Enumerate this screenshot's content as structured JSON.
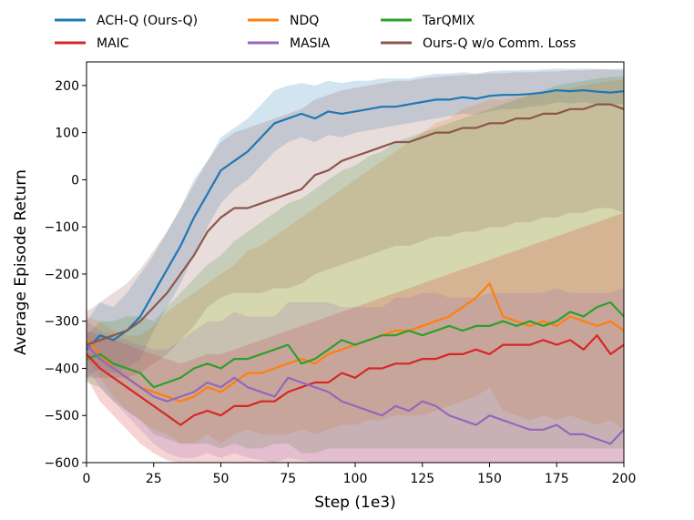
{
  "chart_data": {
    "type": "line",
    "xlabel": "Step (1e3)",
    "ylabel": "Average Episode Return",
    "xlim": [
      0,
      200
    ],
    "ylim": [
      -600,
      250
    ],
    "xticks": [
      0,
      25,
      50,
      75,
      100,
      125,
      150,
      175,
      200
    ],
    "yticks": [
      -600,
      -500,
      -400,
      -300,
      -200,
      -100,
      0,
      100,
      200
    ],
    "legend_position": "top",
    "grid": false,
    "shaded_bands": true,
    "series": [
      {
        "name": "ACH-Q (Ours-Q)",
        "color": "#1f77b4",
        "x": [
          0,
          5,
          10,
          15,
          20,
          25,
          30,
          35,
          40,
          45,
          50,
          55,
          60,
          65,
          70,
          75,
          80,
          85,
          90,
          95,
          100,
          105,
          110,
          115,
          120,
          125,
          130,
          135,
          140,
          145,
          150,
          155,
          160,
          165,
          170,
          175,
          180,
          185,
          190,
          195,
          200
        ],
        "y": [
          -360,
          -330,
          -340,
          -320,
          -290,
          -240,
          -190,
          -140,
          -80,
          -30,
          20,
          40,
          60,
          90,
          120,
          130,
          140,
          130,
          145,
          140,
          145,
          150,
          155,
          155,
          160,
          165,
          170,
          170,
          175,
          172,
          178,
          180,
          180,
          182,
          185,
          190,
          188,
          190,
          187,
          185,
          188
        ],
        "lower": [
          -420,
          -400,
          -410,
          -400,
          -380,
          -320,
          -270,
          -220,
          -160,
          -100,
          -50,
          -20,
          0,
          30,
          60,
          80,
          90,
          80,
          95,
          90,
          100,
          105,
          110,
          115,
          120,
          125,
          130,
          135,
          140,
          138,
          145,
          150,
          150,
          155,
          158,
          165,
          162,
          165,
          160,
          158,
          162
        ],
        "upper": [
          -300,
          -260,
          -270,
          -240,
          -200,
          -160,
          -110,
          -60,
          0,
          40,
          90,
          110,
          130,
          160,
          190,
          200,
          205,
          200,
          210,
          205,
          210,
          210,
          215,
          215,
          215,
          220,
          225,
          225,
          228,
          225,
          230,
          232,
          232,
          233,
          234,
          236,
          235,
          236,
          235,
          234,
          236
        ]
      },
      {
        "name": "NDQ",
        "color": "#ff7f0e",
        "x": [
          0,
          5,
          10,
          15,
          20,
          25,
          30,
          35,
          40,
          45,
          50,
          55,
          60,
          65,
          70,
          75,
          80,
          85,
          90,
          95,
          100,
          105,
          110,
          115,
          120,
          125,
          130,
          135,
          140,
          145,
          150,
          155,
          160,
          165,
          170,
          175,
          180,
          185,
          190,
          195,
          200
        ],
        "y": [
          -340,
          -370,
          -400,
          -420,
          -440,
          -450,
          -460,
          -470,
          -460,
          -440,
          -450,
          -430,
          -410,
          -410,
          -400,
          -390,
          -380,
          -390,
          -370,
          -360,
          -350,
          -340,
          -330,
          -320,
          -320,
          -310,
          -300,
          -290,
          -270,
          -250,
          -220,
          -290,
          -300,
          -310,
          -300,
          -310,
          -290,
          -300,
          -310,
          -300,
          -320
        ],
        "lower": [
          -380,
          -420,
          -460,
          -490,
          -510,
          -530,
          -540,
          -560,
          -560,
          -540,
          -560,
          -540,
          -530,
          -540,
          -540,
          -540,
          -530,
          -540,
          -530,
          -520,
          -520,
          -510,
          -510,
          -500,
          -500,
          -500,
          -490,
          -480,
          -470,
          -460,
          -440,
          -490,
          -500,
          -510,
          -500,
          -510,
          -500,
          -510,
          -520,
          -510,
          -530
        ],
        "upper": [
          -290,
          -300,
          -320,
          -330,
          -330,
          -310,
          -280,
          -260,
          -240,
          -220,
          -200,
          -180,
          -150,
          -140,
          -120,
          -100,
          -80,
          -60,
          -40,
          -20,
          0,
          20,
          40,
          60,
          80,
          100,
          120,
          130,
          150,
          160,
          170,
          170,
          175,
          180,
          185,
          190,
          195,
          200,
          205,
          210,
          212
        ]
      },
      {
        "name": "TarQMIX",
        "color": "#2ca02c",
        "x": [
          0,
          5,
          10,
          15,
          20,
          25,
          30,
          35,
          40,
          45,
          50,
          55,
          60,
          65,
          70,
          75,
          80,
          85,
          90,
          95,
          100,
          105,
          110,
          115,
          120,
          125,
          130,
          135,
          140,
          145,
          150,
          155,
          160,
          165,
          170,
          175,
          180,
          185,
          190,
          195,
          200
        ],
        "y": [
          -380,
          -370,
          -390,
          -400,
          -410,
          -440,
          -430,
          -420,
          -400,
          -390,
          -400,
          -380,
          -380,
          -370,
          -360,
          -350,
          -390,
          -380,
          -360,
          -340,
          -350,
          -340,
          -330,
          -330,
          -320,
          -330,
          -320,
          -310,
          -320,
          -310,
          -310,
          -300,
          -310,
          -300,
          -310,
          -300,
          -280,
          -290,
          -270,
          -260,
          -290
        ],
        "lower": [
          -430,
          -440,
          -470,
          -490,
          -510,
          -540,
          -550,
          -560,
          -560,
          -560,
          -570,
          -560,
          -570,
          -570,
          -560,
          -560,
          -580,
          -580,
          -570,
          -570,
          -570,
          -570,
          -570,
          -570,
          -570,
          -570,
          -570,
          -570,
          -570,
          -570,
          -570,
          -570,
          -570,
          -570,
          -570,
          -570,
          -570,
          -570,
          -570,
          -570,
          -570
        ],
        "upper": [
          -330,
          -300,
          -300,
          -290,
          -290,
          -300,
          -270,
          -240,
          -210,
          -180,
          -160,
          -130,
          -110,
          -90,
          -70,
          -50,
          -40,
          -20,
          0,
          20,
          30,
          50,
          60,
          80,
          90,
          100,
          110,
          120,
          130,
          140,
          150,
          160,
          170,
          180,
          190,
          200,
          205,
          210,
          215,
          218,
          220
        ]
      },
      {
        "name": "MAIC",
        "color": "#d62728",
        "x": [
          0,
          5,
          10,
          15,
          20,
          25,
          30,
          35,
          40,
          45,
          50,
          55,
          60,
          65,
          70,
          75,
          80,
          85,
          90,
          95,
          100,
          105,
          110,
          115,
          120,
          125,
          130,
          135,
          140,
          145,
          150,
          155,
          160,
          165,
          170,
          175,
          180,
          185,
          190,
          195,
          200
        ],
        "y": [
          -370,
          -400,
          -420,
          -440,
          -460,
          -480,
          -500,
          -520,
          -500,
          -490,
          -500,
          -480,
          -480,
          -470,
          -470,
          -450,
          -440,
          -430,
          -430,
          -410,
          -420,
          -400,
          -400,
          -390,
          -390,
          -380,
          -380,
          -370,
          -370,
          -360,
          -370,
          -350,
          -350,
          -350,
          -340,
          -350,
          -340,
          -360,
          -330,
          -370,
          -350
        ],
        "lower": [
          -420,
          -470,
          -500,
          -530,
          -560,
          -580,
          -595,
          -600,
          -600,
          -600,
          -600,
          -600,
          -600,
          -600,
          -600,
          -600,
          -600,
          -600,
          -600,
          -600,
          -600,
          -600,
          -600,
          -600,
          -600,
          -600,
          -600,
          -600,
          -600,
          -600,
          -600,
          -600,
          -600,
          -600,
          -600,
          -600,
          -600,
          -600,
          -600,
          -600,
          -600
        ],
        "upper": [
          -320,
          -330,
          -340,
          -350,
          -360,
          -370,
          -380,
          -390,
          -380,
          -370,
          -370,
          -360,
          -350,
          -340,
          -330,
          -320,
          -310,
          -300,
          -290,
          -280,
          -270,
          -260,
          -250,
          -240,
          -230,
          -220,
          -210,
          -200,
          -190,
          -180,
          -170,
          -160,
          -150,
          -140,
          -130,
          -120,
          -110,
          -100,
          -90,
          -80,
          -70
        ]
      },
      {
        "name": "MASIA",
        "color": "#9467bd",
        "x": [
          0,
          5,
          10,
          15,
          20,
          25,
          30,
          35,
          40,
          45,
          50,
          55,
          60,
          65,
          70,
          75,
          80,
          85,
          90,
          95,
          100,
          105,
          110,
          115,
          120,
          125,
          130,
          135,
          140,
          145,
          150,
          155,
          160,
          165,
          170,
          175,
          180,
          185,
          190,
          195,
          200
        ],
        "y": [
          -350,
          -380,
          -400,
          -420,
          -440,
          -460,
          -470,
          -460,
          -450,
          -430,
          -440,
          -420,
          -440,
          -450,
          -460,
          -420,
          -430,
          -440,
          -450,
          -470,
          -480,
          -490,
          -500,
          -480,
          -490,
          -470,
          -480,
          -500,
          -510,
          -520,
          -500,
          -510,
          -520,
          -530,
          -530,
          -520,
          -540,
          -540,
          -550,
          -560,
          -530
        ],
        "lower": [
          -400,
          -440,
          -470,
          -500,
          -530,
          -560,
          -580,
          -590,
          -590,
          -580,
          -590,
          -580,
          -590,
          -595,
          -600,
          -590,
          -595,
          -600,
          -600,
          -600,
          -600,
          -600,
          -600,
          -600,
          -600,
          -600,
          -600,
          -600,
          -600,
          -600,
          -600,
          -600,
          -600,
          -600,
          -600,
          -600,
          -600,
          -600,
          -600,
          -600,
          -600
        ],
        "upper": [
          -300,
          -320,
          -330,
          -340,
          -350,
          -360,
          -360,
          -340,
          -320,
          -300,
          -300,
          -280,
          -290,
          -290,
          -290,
          -260,
          -260,
          -260,
          -260,
          -270,
          -270,
          -270,
          -270,
          -250,
          -250,
          -240,
          -240,
          -250,
          -250,
          -250,
          -240,
          -240,
          -240,
          -240,
          -240,
          -230,
          -240,
          -240,
          -240,
          -240,
          -230
        ]
      },
      {
        "name": "Ours-Q w/o Comm. Loss",
        "color": "#8c564b",
        "x": [
          0,
          5,
          10,
          15,
          20,
          25,
          30,
          35,
          40,
          45,
          50,
          55,
          60,
          65,
          70,
          75,
          80,
          85,
          90,
          95,
          100,
          105,
          110,
          115,
          120,
          125,
          130,
          135,
          140,
          145,
          150,
          155,
          160,
          165,
          170,
          175,
          180,
          185,
          190,
          195,
          200
        ],
        "y": [
          -350,
          -340,
          -330,
          -320,
          -300,
          -270,
          -240,
          -200,
          -160,
          -110,
          -80,
          -60,
          -60,
          -50,
          -40,
          -30,
          -20,
          10,
          20,
          40,
          50,
          60,
          70,
          80,
          80,
          90,
          100,
          100,
          110,
          110,
          120,
          120,
          130,
          130,
          140,
          140,
          150,
          150,
          160,
          160,
          150
        ],
        "lower": [
          -420,
          -420,
          -420,
          -420,
          -410,
          -390,
          -370,
          -340,
          -310,
          -270,
          -250,
          -240,
          -240,
          -240,
          -230,
          -230,
          -220,
          -200,
          -190,
          -180,
          -170,
          -160,
          -150,
          -140,
          -140,
          -130,
          -120,
          -120,
          -110,
          -110,
          -100,
          -100,
          -90,
          -90,
          -80,
          -80,
          -70,
          -70,
          -60,
          -60,
          -70
        ],
        "upper": [
          -280,
          -260,
          -240,
          -220,
          -190,
          -150,
          -110,
          -60,
          -10,
          40,
          80,
          100,
          110,
          120,
          130,
          140,
          150,
          170,
          180,
          190,
          195,
          200,
          205,
          210,
          210,
          215,
          218,
          220,
          222,
          224,
          226,
          226,
          228,
          228,
          230,
          230,
          232,
          232,
          234,
          234,
          232
        ]
      }
    ]
  }
}
